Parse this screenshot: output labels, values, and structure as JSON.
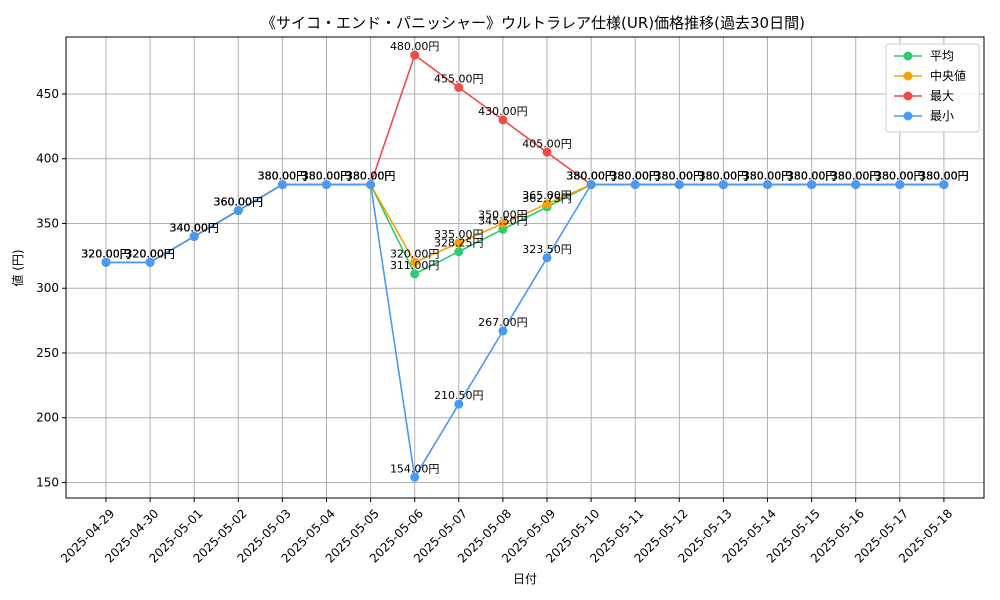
{
  "chart_data": {
    "type": "line",
    "title": "《サイコ・エンド・パニッシャー》ウルトラレア仕様(UR)価格推移(過去30日間)",
    "xlabel": "日付",
    "ylabel": "値 (円)",
    "ylim": [
      138,
      494
    ],
    "yticks": [
      150,
      200,
      250,
      300,
      350,
      400,
      450
    ],
    "grid": true,
    "legend_position": "top-right",
    "value_suffix": "円",
    "categories": [
      "2025-04-29",
      "2025-04-30",
      "2025-05-01",
      "2025-05-02",
      "2025-05-03",
      "2025-05-04",
      "2025-05-05",
      "2025-05-06",
      "2025-05-07",
      "2025-05-08",
      "2025-05-09",
      "2025-05-10",
      "2025-05-11",
      "2025-05-12",
      "2025-05-13",
      "2025-05-14",
      "2025-05-15",
      "2025-05-16",
      "2025-05-17",
      "2025-05-18"
    ],
    "series": [
      {
        "name": "平均",
        "color": "#2ecc71",
        "values": [
          320,
          320,
          340,
          360,
          380,
          380,
          380,
          311,
          328.25,
          345.5,
          362.75,
          380,
          380,
          380,
          380,
          380,
          380,
          380,
          380,
          380
        ]
      },
      {
        "name": "中央値",
        "color": "#f5a30a",
        "values": [
          320,
          320,
          340,
          360,
          380,
          380,
          380,
          320,
          335,
          350,
          365,
          380,
          380,
          380,
          380,
          380,
          380,
          380,
          380,
          380
        ]
      },
      {
        "name": "最大",
        "color": "#f04b4b",
        "values": [
          320,
          320,
          340,
          360,
          380,
          380,
          380,
          480,
          455,
          430,
          405,
          380,
          380,
          380,
          380,
          380,
          380,
          380,
          380,
          380
        ]
      },
      {
        "name": "最小",
        "color": "#4a9af5",
        "values": [
          320,
          320,
          340,
          360,
          380,
          380,
          380,
          154,
          210.5,
          267,
          323.5,
          380,
          380,
          380,
          380,
          380,
          380,
          380,
          380,
          380
        ]
      }
    ]
  }
}
